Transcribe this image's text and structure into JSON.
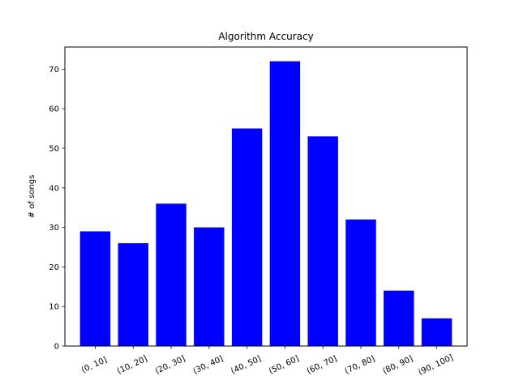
{
  "chart_data": {
    "type": "bar",
    "title": "Algorithm Accuracy",
    "xlabel": "",
    "ylabel": "# of songs",
    "categories": [
      "(0, 10]",
      "(10, 20]",
      "(20, 30]",
      "(30, 40]",
      "(40, 50]",
      "(50, 60]",
      "(60, 70]",
      "(70, 80]",
      "(80, 90]",
      "(90, 100]"
    ],
    "values": [
      29,
      26,
      36,
      30,
      55,
      72,
      53,
      32,
      14,
      7
    ],
    "ylim": [
      0,
      75.6
    ],
    "yticks": [
      0,
      10,
      20,
      30,
      40,
      50,
      60,
      70
    ],
    "bar_color": "#0000ff",
    "grid": false,
    "xtick_rotation_deg": 25
  }
}
